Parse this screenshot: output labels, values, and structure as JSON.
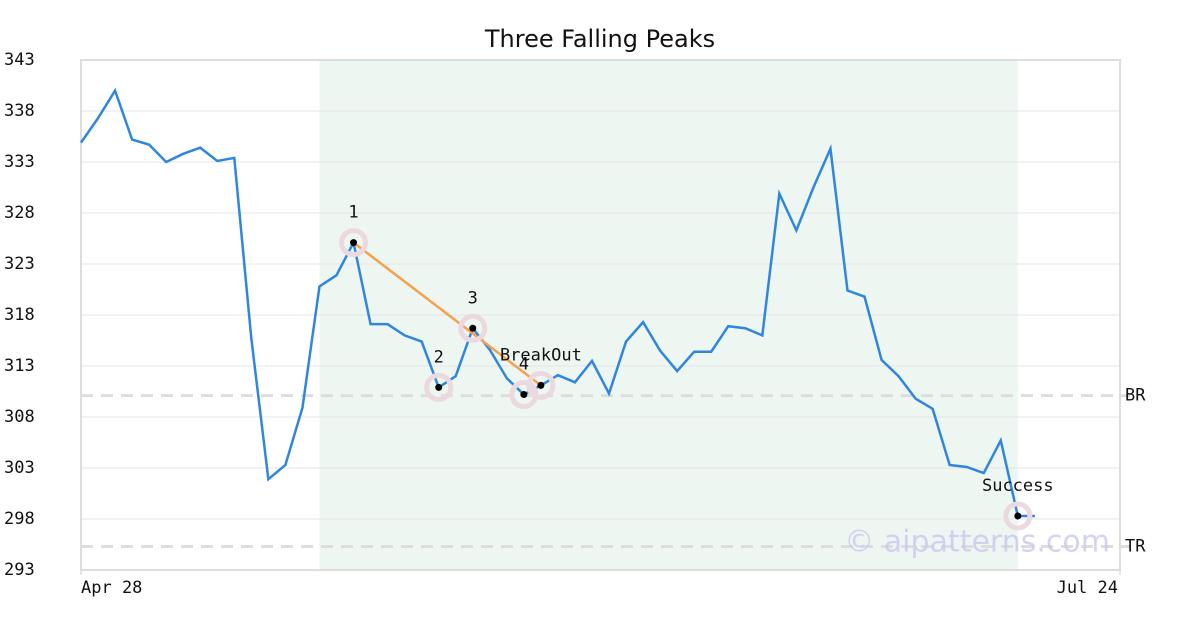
{
  "chart_data": {
    "type": "line",
    "title": "Three Falling Peaks",
    "x": [
      0,
      1,
      2,
      3,
      4,
      5,
      6,
      7,
      8,
      9,
      10,
      11,
      12,
      13,
      14,
      15,
      16,
      17,
      18,
      19,
      20,
      21,
      22,
      23,
      24,
      25,
      26,
      27,
      28,
      29,
      30,
      31,
      32,
      33,
      34,
      35,
      36,
      37,
      38,
      39,
      40,
      41,
      42,
      43,
      44,
      45,
      46,
      47,
      48,
      49,
      50,
      51,
      52,
      53,
      54,
      55,
      56
    ],
    "values": [
      334.9,
      337.3,
      340.0,
      335.2,
      334.7,
      333.0,
      333.8,
      334.4,
      333.1,
      333.4,
      315.7,
      301.9,
      303.3,
      308.9,
      320.8,
      321.9,
      325.1,
      317.1,
      317.1,
      316.0,
      315.4,
      310.9,
      312.0,
      316.7,
      314.6,
      311.8,
      310.2,
      311.1,
      312.1,
      311.4,
      313.5,
      310.3,
      315.4,
      317.3,
      314.5,
      312.5,
      314.4,
      314.4,
      316.9,
      316.7,
      316.0,
      329.9,
      326.3,
      330.5,
      334.3,
      320.4,
      319.8,
      313.6,
      312.0,
      309.8,
      308.8,
      303.3,
      303.1,
      302.5,
      305.7,
      298.3,
      298.3
    ],
    "color": "#2e86de",
    "xlim": [
      0,
      61
    ],
    "xticks": [
      {
        "value": 0,
        "label": "Apr 28"
      },
      {
        "value": 61,
        "label": "Jul 24"
      }
    ],
    "ylim": [
      293,
      343
    ],
    "yticks": [
      293,
      298,
      303,
      308,
      313,
      318,
      323,
      328,
      333,
      338,
      343
    ],
    "grid": true,
    "shade": [
      14,
      55
    ],
    "markers": [
      {
        "label": "1",
        "x": 16,
        "y": 325.1
      },
      {
        "label": "2",
        "x": 21,
        "y": 310.9
      },
      {
        "label": "3",
        "x": 23,
        "y": 316.7
      },
      {
        "label": "4",
        "x": 26,
        "y": 310.2
      },
      {
        "label": "BreakOut",
        "x": 27,
        "y": 311.1
      },
      {
        "label": "Success",
        "x": 55,
        "y": 298.3
      }
    ],
    "trendline": {
      "color": "#f5a04a",
      "x": [
        16,
        27
      ],
      "y": [
        325.1,
        311.1
      ]
    },
    "hlines": [
      {
        "label": "BR",
        "value": 310.1
      },
      {
        "label": "TR",
        "value": 295.3
      }
    ],
    "watermark": "© aipatterns.com"
  }
}
